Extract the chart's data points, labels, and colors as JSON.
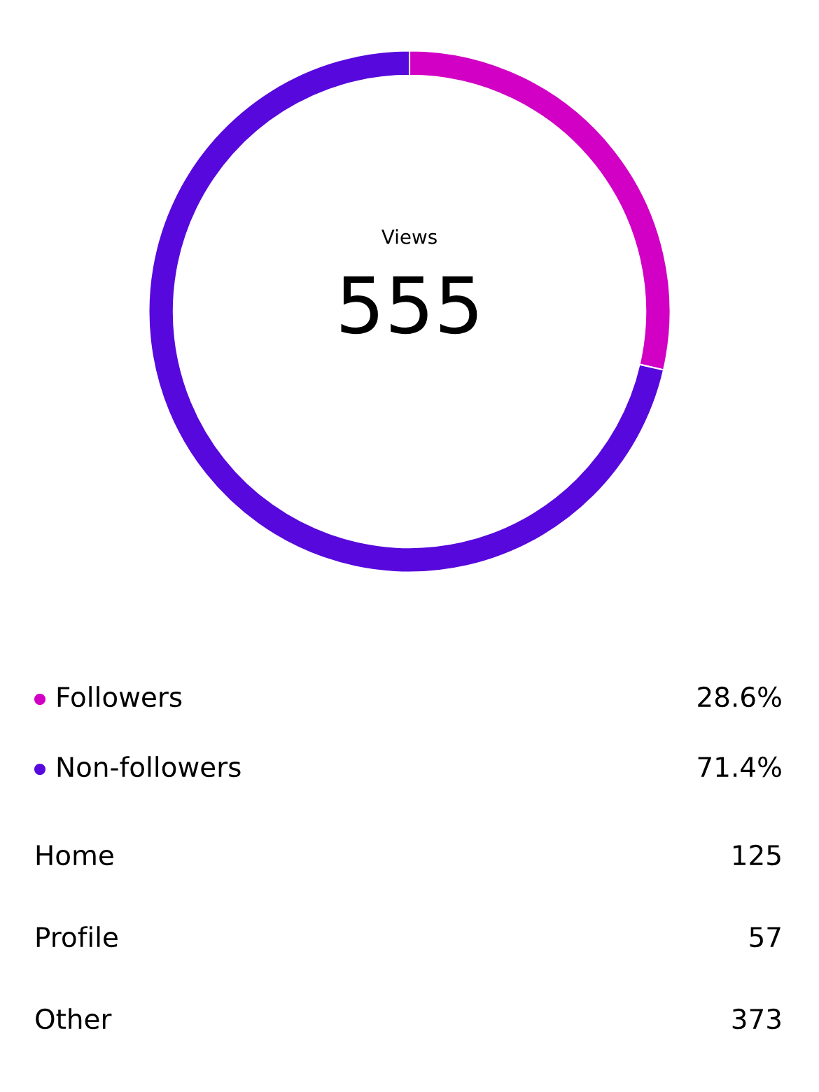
{
  "chart_data": [
    {
      "type": "donut",
      "categories": [
        "Followers",
        "Non-followers"
      ],
      "values": [
        28.6,
        71.4
      ],
      "colors": [
        "#d100c4",
        "#5708dc"
      ],
      "value_labels": [
        "28.6%",
        "71.4%"
      ],
      "legend": "bottom",
      "annotations": [
        "Views",
        "555"
      ]
    },
    {
      "type": "other",
      "categories": [
        "Home",
        "Profile",
        "Other"
      ],
      "values": [
        125,
        57,
        373
      ],
      "data_labels": true
    }
  ]
}
